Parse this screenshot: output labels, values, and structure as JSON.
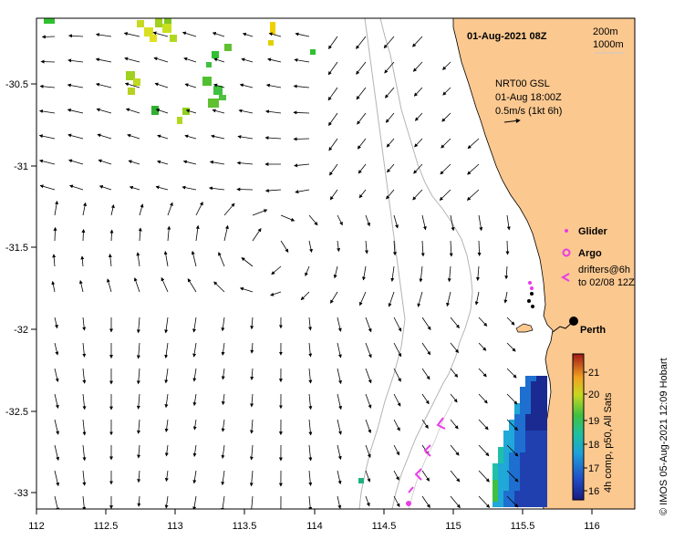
{
  "header": {
    "date_label": "01-Aug-2021 08Z",
    "depth_labels": [
      "200m",
      "1000m"
    ]
  },
  "current_legend": {
    "line1": "NRT00 GSL",
    "line2": "01-Aug 18:00Z",
    "line3": "0.5m/s (1kt 6h)"
  },
  "platform_legend": {
    "glider": "Glider",
    "argo": "Argo",
    "drifters_line1": "drifters@6h",
    "drifters_line2": "to 02/08 12Z"
  },
  "city": {
    "name": "Perth"
  },
  "colorbar": {
    "ticks": [
      "21",
      "20",
      "19",
      "18",
      "17",
      "16"
    ],
    "label": "4h comp, p50, All Sats"
  },
  "credit": "© IMOS 05-Aug-2021 12:09 Hobart",
  "axes": {
    "x_ticks": [
      "112",
      "112.5",
      "113",
      "113.5",
      "114",
      "114.5",
      "115",
      "115.5",
      "116"
    ],
    "y_ticks": [
      "-30.5",
      "-31",
      "-31.5",
      "-32",
      "-32.5",
      "-33"
    ]
  },
  "colors": {
    "land": "#FBC890",
    "marker": "#E83CE8",
    "contour": "#B4B4B4"
  }
}
